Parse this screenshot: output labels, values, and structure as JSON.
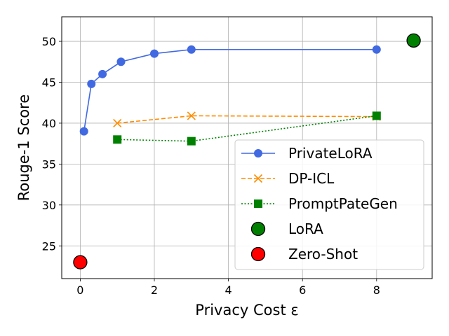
{
  "chart_data": {
    "type": "line",
    "xlabel": "Privacy Cost ε",
    "ylabel": "Rouge-1 Score",
    "xlim": [
      -0.5,
      9.5
    ],
    "ylim": [
      21,
      53
    ],
    "xticks": [
      0,
      2,
      4,
      6,
      8
    ],
    "yticks": [
      25,
      30,
      35,
      40,
      45,
      50
    ],
    "grid": true,
    "legend_position": "lower-right",
    "series": [
      {
        "name": "PrivateLoRA",
        "style": "solid",
        "marker": "circle",
        "color": "#4169e1",
        "points": [
          [
            0.1,
            39.0
          ],
          [
            0.3,
            44.8
          ],
          [
            0.6,
            46.0
          ],
          [
            1.1,
            47.5
          ],
          [
            2.0,
            48.5
          ],
          [
            3.0,
            49.0
          ],
          [
            8.0,
            49.0
          ]
        ]
      },
      {
        "name": "DP-ICL",
        "style": "dashed",
        "marker": "x",
        "color": "#ff8c00",
        "points": [
          [
            1.0,
            40.0
          ],
          [
            3.0,
            40.9
          ],
          [
            8.0,
            40.8
          ]
        ]
      },
      {
        "name": "PromptPateGen",
        "style": "dotted",
        "marker": "square",
        "color": "#008000",
        "points": [
          [
            1.0,
            38.0
          ],
          [
            3.0,
            37.8
          ],
          [
            8.0,
            40.9
          ]
        ]
      },
      {
        "name": "LoRA",
        "style": "none",
        "marker": "big-circle",
        "color": "#008000",
        "points": [
          [
            9.0,
            50.1
          ]
        ]
      },
      {
        "name": "Zero-Shot",
        "style": "none",
        "marker": "big-circle",
        "color": "#ff0000",
        "points": [
          [
            0.0,
            23.0
          ]
        ]
      }
    ]
  }
}
